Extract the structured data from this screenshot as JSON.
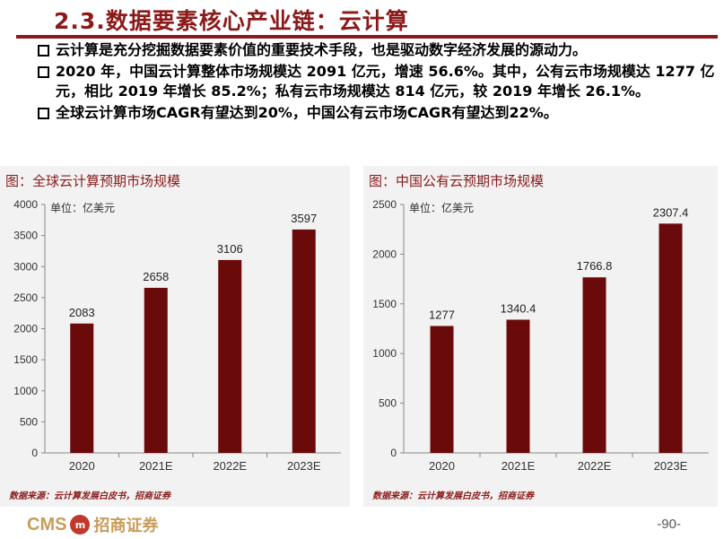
{
  "header": {
    "title": "2.3.数据要素核心产业链：云计算"
  },
  "bullets": [
    "云计算是充分挖掘数据要素价值的重要技术手段，也是驱动数字经济发展的源动力。",
    "2020 年，中国云计算整体市场规模达 2091 亿元，增速 56.6%。其中，公有云市场规模达 1277 亿元，相比 2019 年增长 85.2%；私有云市场规模达 814 亿元，较 2019 年增长 26.1%。",
    "全球云计算市场CAGR有望达到20%，中国公有云市场CAGR有望达到22%。"
  ],
  "panels": [
    {
      "caption": "图：全球云计算预期市场规模",
      "source": "数据来源：云计算发展白皮书，招商证券"
    },
    {
      "caption": "图：中国公有云预期市场规模",
      "source": "数据来源：云计算发展白皮书，招商证券"
    }
  ],
  "chart_data": [
    {
      "type": "bar",
      "unit_label": "单位：亿美元",
      "categories": [
        "2020",
        "2021E",
        "2022E",
        "2023E"
      ],
      "values": [
        2083,
        2658,
        3106,
        3597
      ],
      "data_labels": [
        "2083",
        "2658",
        "3106",
        "3597"
      ],
      "ylim": [
        0,
        4000
      ],
      "yticks": [
        "0",
        "500",
        "1000",
        "1500",
        "2000",
        "2500",
        "3000",
        "3500",
        "4000"
      ],
      "color": "#6b0a0a"
    },
    {
      "type": "bar",
      "unit_label": "单位：亿美元",
      "categories": [
        "2020",
        "2021E",
        "2022E",
        "2023E"
      ],
      "values": [
        1277,
        1340.4,
        1766.8,
        2307.4
      ],
      "data_labels": [
        "1277",
        "1340.4",
        "1766.8",
        "2307.4"
      ],
      "ylim": [
        0,
        2500
      ],
      "yticks": [
        "0",
        "500",
        "1000",
        "1500",
        "2000",
        "2500"
      ],
      "color": "#6b0a0a"
    }
  ],
  "footer": {
    "logo_text": "CMS",
    "coin_text": "m",
    "brand": "招商证券",
    "page": "-90-"
  }
}
